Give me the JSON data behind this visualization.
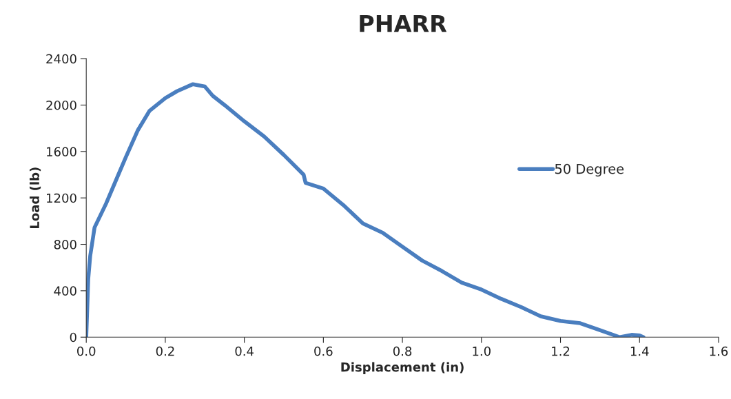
{
  "chart_data": {
    "type": "line",
    "title": "PHARR",
    "xlabel": "Displacement (in)",
    "ylabel": "Load (lb)",
    "xlim": [
      0,
      1.6
    ],
    "xticks": [
      {
        "value": 0,
        "label": "0.0"
      },
      0.2,
      0.4,
      0.6,
      0.8,
      {
        "value": 1,
        "label": "1.0"
      },
      1.2,
      1.4,
      1.6
    ],
    "ylim": [
      0,
      2400
    ],
    "yticks": [
      0,
      400,
      800,
      1200,
      1600,
      2000,
      2400
    ],
    "grid": false,
    "legend": "right",
    "marker": "none",
    "line_style": "solid",
    "series": [
      {
        "name": "50 Degree",
        "color": "#4a7ebf",
        "x": [
          0,
          0.005,
          0.01,
          0.021,
          0.05,
          0.08,
          0.1,
          0.13,
          0.16,
          0.2,
          0.23,
          0.27,
          0.3,
          0.32,
          0.35,
          0.4,
          0.45,
          0.5,
          0.55,
          0.555,
          0.6,
          0.65,
          0.7,
          0.75,
          0.8,
          0.85,
          0.9,
          0.95,
          1.0,
          1.05,
          1.1,
          1.15,
          1.2,
          1.25,
          1.3,
          1.35,
          1.38,
          1.4,
          1.41
        ],
        "values": [
          0,
          500,
          700,
          945,
          1150,
          1390,
          1550,
          1780,
          1950,
          2060,
          2120,
          2180,
          2160,
          2080,
          2000,
          1860,
          1730,
          1570,
          1400,
          1330,
          1280,
          1140,
          980,
          900,
          780,
          660,
          570,
          470,
          410,
          330,
          260,
          180,
          140,
          120,
          60,
          0,
          20,
          15,
          0
        ]
      }
    ]
  }
}
